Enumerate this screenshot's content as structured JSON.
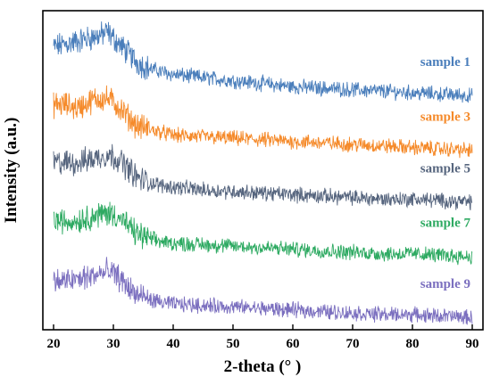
{
  "chart_data": {
    "type": "line",
    "xlabel": "2-theta (° )",
    "ylabel": "Intensity (a.u.)",
    "xlim": [
      20,
      90
    ],
    "x_ticks": [
      "20",
      "30",
      "40",
      "50",
      "60",
      "70",
      "80",
      "90"
    ],
    "y_ticks": [],
    "grid": false,
    "legend": "inline labels at right end of each trace",
    "series": [
      {
        "name": "sample 1",
        "color": "#4a7ebb",
        "x": [
          20,
          22,
          24,
          26,
          28,
          29,
          30,
          31,
          32,
          33,
          34,
          36,
          38,
          40,
          45,
          50,
          55,
          60,
          65,
          70,
          75,
          80,
          85,
          90
        ],
        "y": [
          9.3,
          9.4,
          9.5,
          9.6,
          9.7,
          9.8,
          9.6,
          9.4,
          9.2,
          9.0,
          8.8,
          8.6,
          8.5,
          8.4,
          8.3,
          8.2,
          8.1,
          8.0,
          7.95,
          7.9,
          7.85,
          7.8,
          7.75,
          7.7
        ]
      },
      {
        "name": "sample 3",
        "color": "#f58a2a",
        "x": [
          20,
          22,
          24,
          25,
          26,
          27,
          28,
          29,
          30,
          31,
          32,
          33,
          34,
          36,
          38,
          40,
          45,
          50,
          55,
          60,
          65,
          70,
          75,
          80,
          85,
          90
        ],
        "y": [
          7.4,
          7.4,
          7.3,
          7.4,
          7.5,
          7.6,
          7.6,
          7.6,
          7.5,
          7.3,
          7.1,
          6.9,
          6.7,
          6.6,
          6.5,
          6.4,
          6.35,
          6.3,
          6.25,
          6.2,
          6.15,
          6.1,
          6.05,
          6.0,
          5.95,
          5.9
        ]
      },
      {
        "name": "sample 5",
        "color": "#56657e",
        "x": [
          20,
          22,
          24,
          26,
          28,
          29,
          30,
          31,
          32,
          33,
          34,
          36,
          38,
          40,
          45,
          50,
          55,
          60,
          65,
          70,
          75,
          80,
          85,
          90
        ],
        "y": [
          5.5,
          5.5,
          5.5,
          5.6,
          5.7,
          5.75,
          5.7,
          5.6,
          5.4,
          5.2,
          5.0,
          4.85,
          4.75,
          4.7,
          4.6,
          4.55,
          4.5,
          4.45,
          4.4,
          4.35,
          4.3,
          4.3,
          4.25,
          4.2
        ]
      },
      {
        "name": "sample 7",
        "color": "#2eaa62",
        "x": [
          20,
          22,
          24,
          26,
          28,
          29,
          30,
          31,
          32,
          33,
          34,
          36,
          38,
          40,
          45,
          50,
          55,
          60,
          65,
          70,
          75,
          80,
          85,
          90
        ],
        "y": [
          3.6,
          3.55,
          3.6,
          3.7,
          3.8,
          3.85,
          3.8,
          3.7,
          3.5,
          3.3,
          3.15,
          3.0,
          2.9,
          2.85,
          2.8,
          2.75,
          2.7,
          2.65,
          2.6,
          2.55,
          2.5,
          2.5,
          2.45,
          2.4
        ]
      },
      {
        "name": "sample 9",
        "color": "#7b6fbf",
        "x": [
          20,
          22,
          24,
          26,
          28,
          29,
          30,
          31,
          32,
          33,
          34,
          36,
          38,
          40,
          45,
          50,
          55,
          60,
          65,
          70,
          75,
          80,
          85,
          90
        ],
        "y": [
          1.6,
          1.6,
          1.65,
          1.75,
          1.85,
          1.9,
          1.85,
          1.7,
          1.5,
          1.3,
          1.15,
          1.0,
          0.9,
          0.85,
          0.8,
          0.75,
          0.7,
          0.65,
          0.6,
          0.55,
          0.5,
          0.5,
          0.45,
          0.4
        ]
      }
    ]
  }
}
